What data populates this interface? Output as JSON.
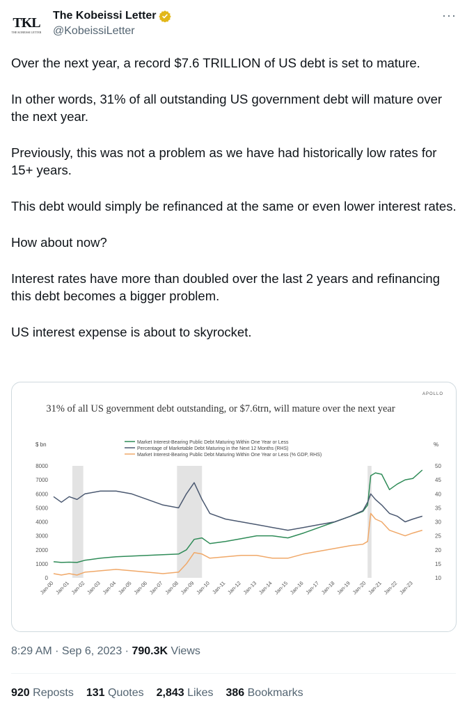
{
  "author": {
    "name": "The Kobeissi Letter",
    "handle": "@KobeissiLetter",
    "avatar_text": "TKL",
    "avatar_subtext": "THE KOBEISSI LETTER"
  },
  "more_label": "···",
  "paragraphs": [
    "Over the next year, a record $7.6 TRILLION of US debt is set to mature.",
    "In other words, 31% of all outstanding US government debt will mature over the next year.",
    "Previously, this was not a problem as we have had historically low rates for 15+ years.",
    "This debt would simply be refinanced at the same or even lower interest rates.",
    "How about now?",
    "Interest rates have more than doubled over the last 2 years and refinancing this debt becomes a bigger problem.",
    "US interest expense is about to skyrocket."
  ],
  "chart_data": {
    "type": "line",
    "source": "APOLLO",
    "title": "31% of all US government debt outstanding, or $7.6trn, will mature over the next year",
    "left_axis_label": "$ bn",
    "right_axis_label": "%",
    "ylim_left": [
      0,
      8000
    ],
    "ylim_right": [
      10,
      50
    ],
    "left_ticks": [
      "0",
      "1000",
      "2000",
      "3000",
      "4000",
      "5000",
      "6000",
      "7000",
      "8000"
    ],
    "right_ticks": [
      "10",
      "15",
      "20",
      "25",
      "30",
      "35",
      "40",
      "45",
      "50"
    ],
    "x_ticks": [
      "Jan-00",
      "Jan-01",
      "Jan-02",
      "Jan-03",
      "Jan-04",
      "Jan-05",
      "Jan-06",
      "Jan-07",
      "Jan-08",
      "Jan-09",
      "Jan-10",
      "Jan-11",
      "Jan-12",
      "Jan-13",
      "Jan-14",
      "Jan-15",
      "Jan-16",
      "Jan-17",
      "Jan-18",
      "Jan-19",
      "Jan-20",
      "Jan-21",
      "Jan-22",
      "Jan-23"
    ],
    "shaded_periods": [
      [
        2001.2,
        2001.9
      ],
      [
        2007.9,
        2009.5
      ],
      [
        2020.1,
        2020.35
      ]
    ],
    "series": [
      {
        "name": "Market Interest-Bearing Public Debt Maturing Within One Year or Less",
        "axis": "left",
        "color": "#2e8b57",
        "x": [
          2000,
          2000.5,
          2001,
          2001.5,
          2002,
          2003,
          2004,
          2005,
          2006,
          2007,
          2008,
          2008.5,
          2009,
          2009.5,
          2010,
          2011,
          2012,
          2013,
          2014,
          2015,
          2016,
          2017,
          2018,
          2019,
          2019.8,
          2020.1,
          2020.3,
          2020.6,
          2021,
          2021.5,
          2022,
          2022.5,
          2023,
          2023.6
        ],
        "values": [
          1150,
          1100,
          1120,
          1100,
          1250,
          1400,
          1500,
          1550,
          1600,
          1650,
          1700,
          2000,
          2750,
          2850,
          2450,
          2600,
          2800,
          3000,
          3000,
          2850,
          3200,
          3600,
          4000,
          4400,
          4750,
          5200,
          7300,
          7500,
          7400,
          6300,
          6700,
          7000,
          7100,
          7700
        ]
      },
      {
        "name": "Percentage of Marketable Debt Maturing in the Next 12 Months (RHS)",
        "axis": "right",
        "color": "#4a5870",
        "x": [
          2000,
          2000.5,
          2001,
          2001.5,
          2002,
          2003,
          2004,
          2005,
          2006,
          2007,
          2008,
          2008.5,
          2009,
          2009.5,
          2010,
          2011,
          2012,
          2013,
          2014,
          2015,
          2016,
          2017,
          2018,
          2019,
          2019.8,
          2020.1,
          2020.3,
          2020.6,
          2021,
          2021.5,
          2022,
          2022.5,
          2023,
          2023.6
        ],
        "values": [
          39,
          37,
          39,
          38,
          40,
          41,
          41,
          40,
          38,
          36,
          35,
          40,
          44,
          38,
          33,
          31,
          30,
          29,
          28,
          27,
          28,
          29,
          30,
          32,
          34,
          37,
          40,
          38,
          36,
          33,
          32,
          30,
          31,
          32
        ]
      },
      {
        "name": "Market Interest-Bearing Public Debt Maturing Within One Year or Less (% GDP, RHS)",
        "axis": "right",
        "color": "#f0a868",
        "x": [
          2000,
          2000.5,
          2001,
          2001.5,
          2002,
          2003,
          2004,
          2005,
          2006,
          2007,
          2008,
          2008.5,
          2009,
          2009.5,
          2010,
          2011,
          2012,
          2013,
          2014,
          2015,
          2016,
          2017,
          2018,
          2019,
          2019.8,
          2020.1,
          2020.3,
          2020.6,
          2021,
          2021.5,
          2022,
          2022.5,
          2023,
          2023.6
        ],
        "values": [
          11.5,
          11,
          11.5,
          11,
          12,
          12.5,
          13,
          12.5,
          12,
          11.5,
          12,
          15,
          19,
          18.5,
          17,
          17.5,
          18,
          18,
          17,
          17,
          18.5,
          19.5,
          20.5,
          21.5,
          22,
          23,
          33,
          31,
          30,
          27,
          26,
          25,
          26,
          27
        ]
      }
    ]
  },
  "timestamp": "8:29 AM · Sep 6, 2023 · ",
  "views_count": "790.3K",
  "views_label": " Views",
  "stats": {
    "reposts_count": "920",
    "reposts_label": "Reposts",
    "quotes_count": "131",
    "quotes_label": "Quotes",
    "likes_count": "2,843",
    "likes_label": "Likes",
    "bookmarks_count": "386",
    "bookmarks_label": "Bookmarks"
  },
  "colors": {
    "verified": "#e2b719",
    "text_secondary": "#536471"
  },
  "icons": {
    "verified": "verified-badge-icon",
    "more": "more-icon"
  }
}
